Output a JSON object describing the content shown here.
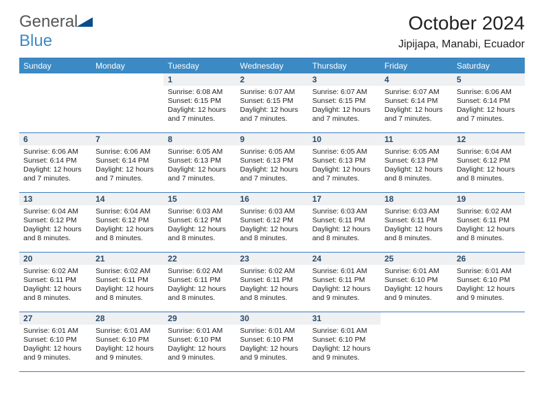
{
  "logo": {
    "text1": "General",
    "text2": "Blue"
  },
  "title": "October 2024",
  "location": "Jipijapa, Manabi, Ecuador",
  "style": {
    "header_bg": "#3b8ac4",
    "header_fg": "#ffffff",
    "border_color": "#3b7bbf",
    "daynum_bg": "#eef0f2",
    "daynum_fg": "#2a4a6a",
    "body_fg": "#222222",
    "page_bg": "#ffffff",
    "logo_gray": "#555555",
    "logo_blue": "#3b8ac4",
    "logo_triangle": "#0a4d8c",
    "title_fontsize": 28,
    "location_fontsize": 16,
    "dayheader_fontsize": 12,
    "daynum_fontsize": 12,
    "body_fontsize": 10.5
  },
  "dayheaders": [
    "Sunday",
    "Monday",
    "Tuesday",
    "Wednesday",
    "Thursday",
    "Friday",
    "Saturday"
  ],
  "weeks": [
    [
      {
        "empty": true,
        "num": ""
      },
      {
        "empty": true,
        "num": ""
      },
      {
        "num": "1",
        "sr": "Sunrise: 6:08 AM",
        "ss": "Sunset: 6:15 PM",
        "dl": "Daylight: 12 hours and 7 minutes."
      },
      {
        "num": "2",
        "sr": "Sunrise: 6:07 AM",
        "ss": "Sunset: 6:15 PM",
        "dl": "Daylight: 12 hours and 7 minutes."
      },
      {
        "num": "3",
        "sr": "Sunrise: 6:07 AM",
        "ss": "Sunset: 6:15 PM",
        "dl": "Daylight: 12 hours and 7 minutes."
      },
      {
        "num": "4",
        "sr": "Sunrise: 6:07 AM",
        "ss": "Sunset: 6:14 PM",
        "dl": "Daylight: 12 hours and 7 minutes."
      },
      {
        "num": "5",
        "sr": "Sunrise: 6:06 AM",
        "ss": "Sunset: 6:14 PM",
        "dl": "Daylight: 12 hours and 7 minutes."
      }
    ],
    [
      {
        "num": "6",
        "sr": "Sunrise: 6:06 AM",
        "ss": "Sunset: 6:14 PM",
        "dl": "Daylight: 12 hours and 7 minutes."
      },
      {
        "num": "7",
        "sr": "Sunrise: 6:06 AM",
        "ss": "Sunset: 6:14 PM",
        "dl": "Daylight: 12 hours and 7 minutes."
      },
      {
        "num": "8",
        "sr": "Sunrise: 6:05 AM",
        "ss": "Sunset: 6:13 PM",
        "dl": "Daylight: 12 hours and 7 minutes."
      },
      {
        "num": "9",
        "sr": "Sunrise: 6:05 AM",
        "ss": "Sunset: 6:13 PM",
        "dl": "Daylight: 12 hours and 7 minutes."
      },
      {
        "num": "10",
        "sr": "Sunrise: 6:05 AM",
        "ss": "Sunset: 6:13 PM",
        "dl": "Daylight: 12 hours and 7 minutes."
      },
      {
        "num": "11",
        "sr": "Sunrise: 6:05 AM",
        "ss": "Sunset: 6:13 PM",
        "dl": "Daylight: 12 hours and 8 minutes."
      },
      {
        "num": "12",
        "sr": "Sunrise: 6:04 AM",
        "ss": "Sunset: 6:12 PM",
        "dl": "Daylight: 12 hours and 8 minutes."
      }
    ],
    [
      {
        "num": "13",
        "sr": "Sunrise: 6:04 AM",
        "ss": "Sunset: 6:12 PM",
        "dl": "Daylight: 12 hours and 8 minutes."
      },
      {
        "num": "14",
        "sr": "Sunrise: 6:04 AM",
        "ss": "Sunset: 6:12 PM",
        "dl": "Daylight: 12 hours and 8 minutes."
      },
      {
        "num": "15",
        "sr": "Sunrise: 6:03 AM",
        "ss": "Sunset: 6:12 PM",
        "dl": "Daylight: 12 hours and 8 minutes."
      },
      {
        "num": "16",
        "sr": "Sunrise: 6:03 AM",
        "ss": "Sunset: 6:12 PM",
        "dl": "Daylight: 12 hours and 8 minutes."
      },
      {
        "num": "17",
        "sr": "Sunrise: 6:03 AM",
        "ss": "Sunset: 6:11 PM",
        "dl": "Daylight: 12 hours and 8 minutes."
      },
      {
        "num": "18",
        "sr": "Sunrise: 6:03 AM",
        "ss": "Sunset: 6:11 PM",
        "dl": "Daylight: 12 hours and 8 minutes."
      },
      {
        "num": "19",
        "sr": "Sunrise: 6:02 AM",
        "ss": "Sunset: 6:11 PM",
        "dl": "Daylight: 12 hours and 8 minutes."
      }
    ],
    [
      {
        "num": "20",
        "sr": "Sunrise: 6:02 AM",
        "ss": "Sunset: 6:11 PM",
        "dl": "Daylight: 12 hours and 8 minutes."
      },
      {
        "num": "21",
        "sr": "Sunrise: 6:02 AM",
        "ss": "Sunset: 6:11 PM",
        "dl": "Daylight: 12 hours and 8 minutes."
      },
      {
        "num": "22",
        "sr": "Sunrise: 6:02 AM",
        "ss": "Sunset: 6:11 PM",
        "dl": "Daylight: 12 hours and 8 minutes."
      },
      {
        "num": "23",
        "sr": "Sunrise: 6:02 AM",
        "ss": "Sunset: 6:11 PM",
        "dl": "Daylight: 12 hours and 8 minutes."
      },
      {
        "num": "24",
        "sr": "Sunrise: 6:01 AM",
        "ss": "Sunset: 6:11 PM",
        "dl": "Daylight: 12 hours and 9 minutes."
      },
      {
        "num": "25",
        "sr": "Sunrise: 6:01 AM",
        "ss": "Sunset: 6:10 PM",
        "dl": "Daylight: 12 hours and 9 minutes."
      },
      {
        "num": "26",
        "sr": "Sunrise: 6:01 AM",
        "ss": "Sunset: 6:10 PM",
        "dl": "Daylight: 12 hours and 9 minutes."
      }
    ],
    [
      {
        "num": "27",
        "sr": "Sunrise: 6:01 AM",
        "ss": "Sunset: 6:10 PM",
        "dl": "Daylight: 12 hours and 9 minutes."
      },
      {
        "num": "28",
        "sr": "Sunrise: 6:01 AM",
        "ss": "Sunset: 6:10 PM",
        "dl": "Daylight: 12 hours and 9 minutes."
      },
      {
        "num": "29",
        "sr": "Sunrise: 6:01 AM",
        "ss": "Sunset: 6:10 PM",
        "dl": "Daylight: 12 hours and 9 minutes."
      },
      {
        "num": "30",
        "sr": "Sunrise: 6:01 AM",
        "ss": "Sunset: 6:10 PM",
        "dl": "Daylight: 12 hours and 9 minutes."
      },
      {
        "num": "31",
        "sr": "Sunrise: 6:01 AM",
        "ss": "Sunset: 6:10 PM",
        "dl": "Daylight: 12 hours and 9 minutes."
      },
      {
        "empty": true,
        "num": ""
      },
      {
        "empty": true,
        "num": ""
      }
    ]
  ]
}
